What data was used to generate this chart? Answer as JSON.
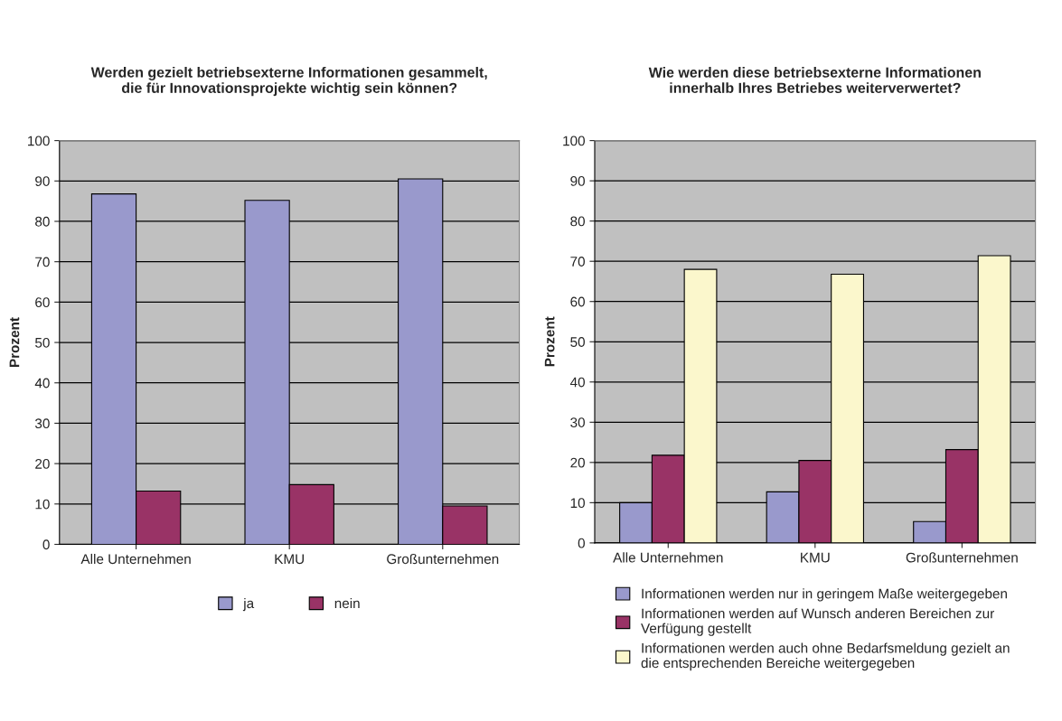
{
  "chart_data": [
    {
      "type": "bar",
      "title": "Werden gezielt betriebsexterne Informationen gesammelt,\ndie für Innovationsprojekte wichtig sein können?",
      "ylabel": "Prozent",
      "categories": [
        "Alle Unternehmen",
        "KMU",
        "Großunternehmen"
      ],
      "series": [
        {
          "name": "ja",
          "color": "#9999cc",
          "values": [
            86.8,
            85.2,
            90.5
          ]
        },
        {
          "name": "nein",
          "color": "#993366",
          "values": [
            13.2,
            14.8,
            9.5
          ]
        }
      ],
      "ylim": [
        0,
        100
      ],
      "yticks": [
        0,
        10,
        20,
        30,
        40,
        50,
        60,
        70,
        80,
        90,
        100
      ],
      "grid": "y",
      "legend": "bottom"
    },
    {
      "type": "bar",
      "title": "Wie werden diese betriebsexterne Informationen\ninnerhalb Ihres Betriebes weiterverwertet?",
      "ylabel": "Prozent",
      "categories": [
        "Alle Unternehmen",
        "KMU",
        "Großunternehmen"
      ],
      "series": [
        {
          "name": "Informationen werden nur in geringem Maße weitergegeben",
          "color": "#9999cc",
          "values": [
            10.0,
            12.7,
            5.3
          ]
        },
        {
          "name": "Informationen werden auf Wunsch anderen Bereichen zur\nVerfügung gestellt",
          "color": "#993366",
          "values": [
            21.8,
            20.5,
            23.2
          ]
        },
        {
          "name": "Informationen werden auch ohne Bedarfsmeldung gezielt an\ndie entsprechenden Bereiche weitergegeben",
          "color": "#fbf7cc",
          "values": [
            68.0,
            66.8,
            71.4
          ]
        }
      ],
      "ylim": [
        0,
        100
      ],
      "yticks": [
        0,
        10,
        20,
        30,
        40,
        50,
        60,
        70,
        80,
        90,
        100
      ],
      "grid": "y",
      "legend": "bottom"
    }
  ]
}
